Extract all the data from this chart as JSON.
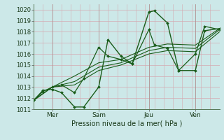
{
  "xlabel": "Pression niveau de la mer( hPa )",
  "ylim": [
    1011,
    1020.5
  ],
  "xlim": [
    0,
    100
  ],
  "yticks": [
    1011,
    1012,
    1013,
    1014,
    1015,
    1016,
    1017,
    1018,
    1019,
    1020
  ],
  "xtick_positions": [
    10,
    35,
    62,
    87
  ],
  "xtick_labels": [
    "Mer",
    "Sam",
    "Jeu",
    "Ven"
  ],
  "bg_color": "#cce8e8",
  "line_color": "#1a5c1a",
  "grid_color_v": "#d4a8b0",
  "grid_color_h": "#d4a8b0",
  "line1_x": [
    0,
    5,
    10,
    15,
    22,
    27,
    35,
    40,
    47,
    53,
    62,
    65,
    72,
    78,
    87,
    92,
    100
  ],
  "line1_y": [
    1011.8,
    1012.7,
    1012.8,
    1012.5,
    1011.2,
    1011.2,
    1013.0,
    1017.3,
    1015.8,
    1015.1,
    1019.8,
    1019.9,
    1018.8,
    1014.5,
    1014.5,
    1018.1,
    1018.3
  ],
  "line2_x": [
    0,
    5,
    10,
    15,
    22,
    27,
    35,
    40,
    47,
    53,
    62,
    65,
    72,
    78,
    87,
    92,
    100
  ],
  "line2_y": [
    1011.8,
    1012.6,
    1013.0,
    1013.2,
    1012.5,
    1013.8,
    1016.6,
    1015.8,
    1015.5,
    1015.1,
    1018.2,
    1016.8,
    1016.5,
    1014.5,
    1016.0,
    1018.5,
    1018.2
  ],
  "line3_x": [
    0,
    10,
    22,
    35,
    47,
    62,
    72,
    87,
    100
  ],
  "line3_y": [
    1011.8,
    1013.0,
    1013.5,
    1014.8,
    1015.2,
    1016.3,
    1016.6,
    1016.5,
    1018.2
  ],
  "line4_x": [
    0,
    10,
    22,
    35,
    47,
    62,
    72,
    87,
    100
  ],
  "line4_y": [
    1011.8,
    1013.0,
    1014.0,
    1015.2,
    1015.5,
    1016.6,
    1016.9,
    1016.8,
    1018.3
  ],
  "line5_x": [
    0,
    10,
    22,
    35,
    47,
    62,
    72,
    87,
    100
  ],
  "line5_y": [
    1011.8,
    1013.0,
    1013.2,
    1014.5,
    1015.0,
    1016.0,
    1016.3,
    1016.2,
    1018.0
  ]
}
